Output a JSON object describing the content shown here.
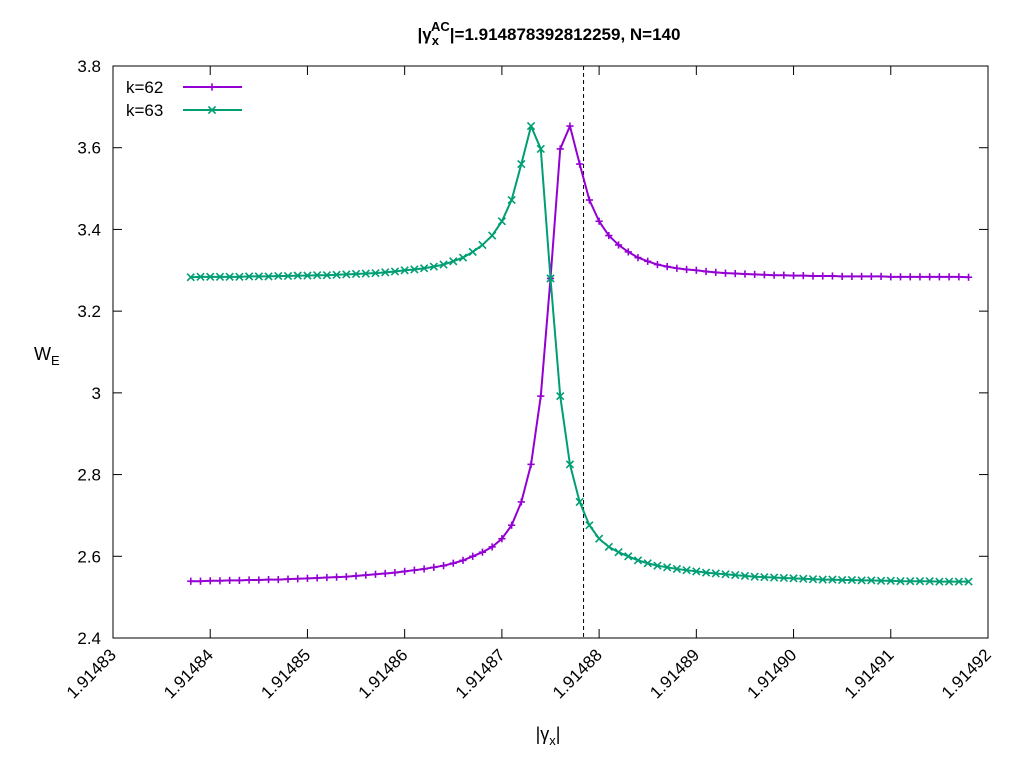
{
  "chart_data": {
    "type": "line",
    "title": {
      "prefix": "|",
      "gamma": "γ",
      "sub": "x",
      "sup": "AC",
      "suffix": "|=1.914878392812259, N=140"
    },
    "xlabel": {
      "prefix": "|",
      "gamma": "γ",
      "sub": "x",
      "suffix": "|"
    },
    "ylabel": {
      "main": "W",
      "sub": "E"
    },
    "xlim": [
      1.91483,
      1.91492
    ],
    "ylim": [
      2.4,
      3.8
    ],
    "xticks": [
      "1.91483",
      "1.91484",
      "1.91485",
      "1.91486",
      "1.91487",
      "1.91488",
      "1.91489",
      "1.91490",
      "1.91491",
      "1.91492"
    ],
    "yticks": [
      "2.4",
      "2.6",
      "2.8",
      "3",
      "3.2",
      "3.4",
      "3.6",
      "3.8"
    ],
    "vline_x": 1.9148784,
    "legend_position": "top-left",
    "grid": false,
    "x": [
      1.914838,
      1.914839,
      1.91484,
      1.914841,
      1.914842,
      1.914843,
      1.914844,
      1.914845,
      1.914846,
      1.914847,
      1.914848,
      1.914849,
      1.91485,
      1.914851,
      1.914852,
      1.914853,
      1.914854,
      1.914855,
      1.914856,
      1.914857,
      1.914858,
      1.914859,
      1.91486,
      1.914861,
      1.914862,
      1.914863,
      1.914864,
      1.914865,
      1.914866,
      1.914867,
      1.914868,
      1.914869,
      1.91487,
      1.914871,
      1.914872,
      1.914873,
      1.914874,
      1.914875,
      1.914876,
      1.914877,
      1.914878,
      1.914879,
      1.91488,
      1.914881,
      1.914882,
      1.914883,
      1.914884,
      1.914885,
      1.914886,
      1.914887,
      1.914888,
      1.914889,
      1.91489,
      1.914891,
      1.914892,
      1.914893,
      1.914894,
      1.914895,
      1.914896,
      1.914897,
      1.914898,
      1.914899,
      1.9149,
      1.914901,
      1.914902,
      1.914903,
      1.914904,
      1.914905,
      1.914906,
      1.914907,
      1.914908,
      1.914909,
      1.91491,
      1.914911,
      1.914912,
      1.914913,
      1.914914,
      1.914915,
      1.914916,
      1.914917,
      1.914918
    ],
    "series": [
      {
        "name": "k=62",
        "color": "#9400d3",
        "marker": "plus",
        "values": [
          2.539,
          2.539,
          2.54,
          2.54,
          2.541,
          2.541,
          2.542,
          2.542,
          2.543,
          2.543,
          2.544,
          2.545,
          2.546,
          2.547,
          2.548,
          2.549,
          2.55,
          2.552,
          2.554,
          2.556,
          2.558,
          2.56,
          2.563,
          2.566,
          2.569,
          2.573,
          2.577,
          2.583,
          2.59,
          2.6,
          2.61,
          2.623,
          2.643,
          2.676,
          2.733,
          2.825,
          2.992,
          3.28,
          3.597,
          3.653,
          3.56,
          3.472,
          3.42,
          3.385,
          3.362,
          3.345,
          3.331,
          3.322,
          3.314,
          3.309,
          3.305,
          3.302,
          3.3,
          3.297,
          3.295,
          3.293,
          3.292,
          3.291,
          3.29,
          3.289,
          3.288,
          3.288,
          3.287,
          3.287,
          3.286,
          3.286,
          3.286,
          3.285,
          3.285,
          3.285,
          3.285,
          3.285,
          3.284,
          3.284,
          3.284,
          3.284,
          3.284,
          3.284,
          3.284,
          3.284,
          3.283
        ]
      },
      {
        "name": "k=63",
        "color": "#009e73",
        "marker": "x",
        "values": [
          3.283,
          3.284,
          3.284,
          3.284,
          3.284,
          3.284,
          3.285,
          3.285,
          3.285,
          3.286,
          3.286,
          3.287,
          3.287,
          3.288,
          3.288,
          3.289,
          3.29,
          3.291,
          3.292,
          3.293,
          3.295,
          3.297,
          3.3,
          3.302,
          3.305,
          3.309,
          3.314,
          3.322,
          3.331,
          3.345,
          3.362,
          3.385,
          3.42,
          3.472,
          3.56,
          3.653,
          3.597,
          3.28,
          2.992,
          2.825,
          2.733,
          2.676,
          2.643,
          2.623,
          2.61,
          2.6,
          2.59,
          2.583,
          2.577,
          2.573,
          2.569,
          2.566,
          2.563,
          2.56,
          2.558,
          2.556,
          2.554,
          2.552,
          2.55,
          2.549,
          2.548,
          2.547,
          2.546,
          2.545,
          2.544,
          2.543,
          2.543,
          2.542,
          2.542,
          2.541,
          2.541,
          2.54,
          2.54,
          2.539,
          2.539,
          2.539,
          2.539,
          2.538,
          2.538,
          2.538,
          2.538
        ]
      }
    ]
  }
}
